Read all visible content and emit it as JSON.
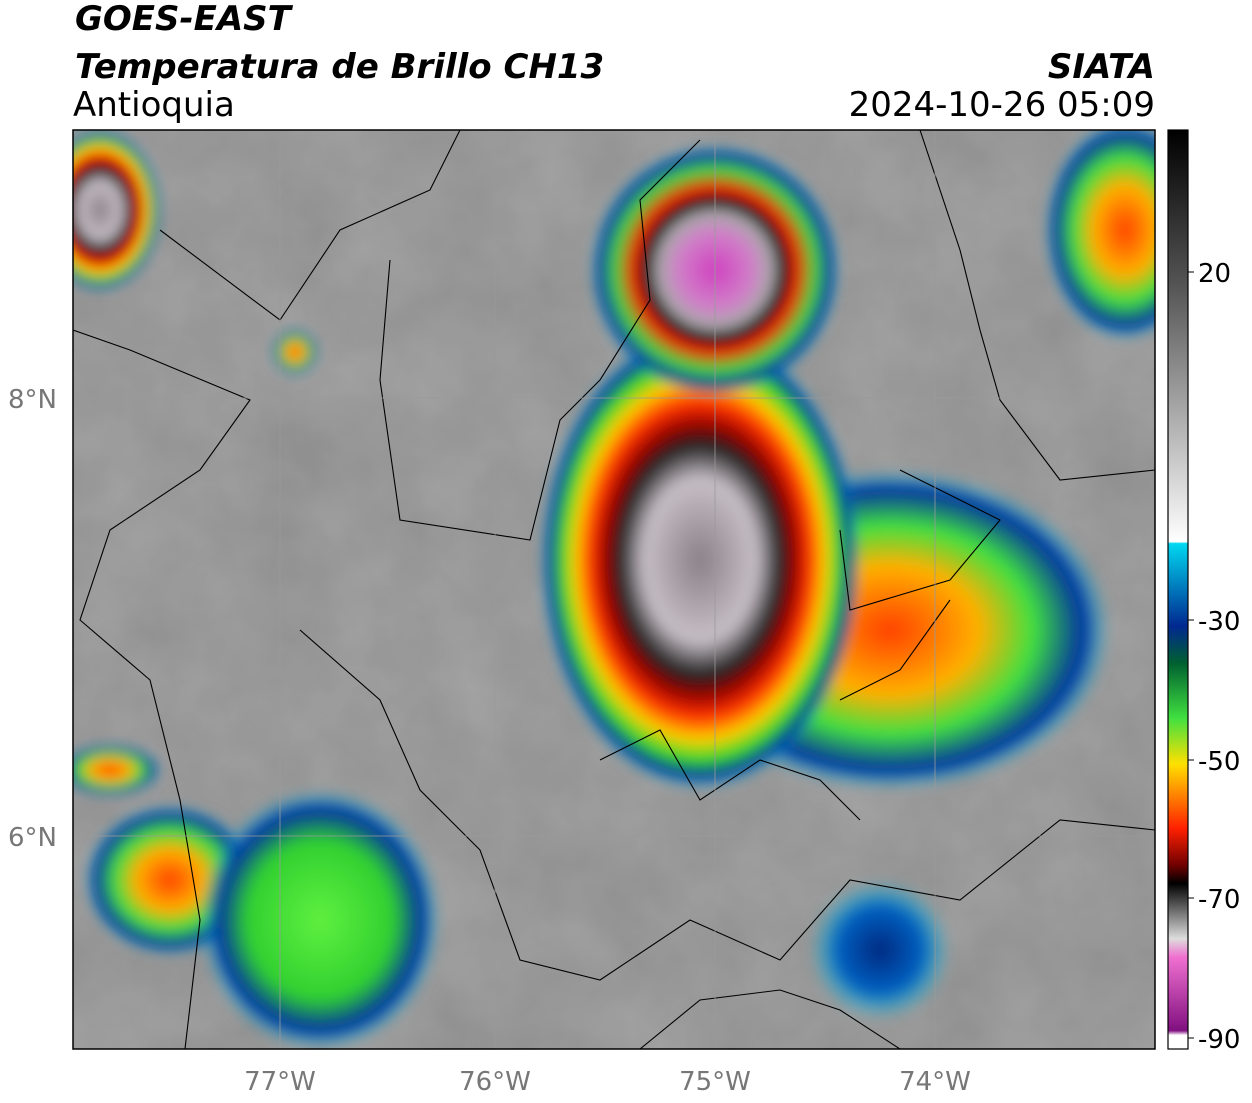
{
  "header": {
    "title": "GOES-EAST",
    "subtitle": "Temperatura de Brillo CH13",
    "region": "Antioquia",
    "source": "SIATA",
    "datetime": "2024-10-26 05:09"
  },
  "map": {
    "lat_labels": [
      "8°N",
      "6°N"
    ],
    "lon_labels": [
      "77°W",
      "76°W",
      "75°W",
      "74°W"
    ]
  },
  "colorbar": {
    "tick_labels": [
      "20",
      "-30",
      "-50",
      "-70",
      "-90"
    ]
  }
}
